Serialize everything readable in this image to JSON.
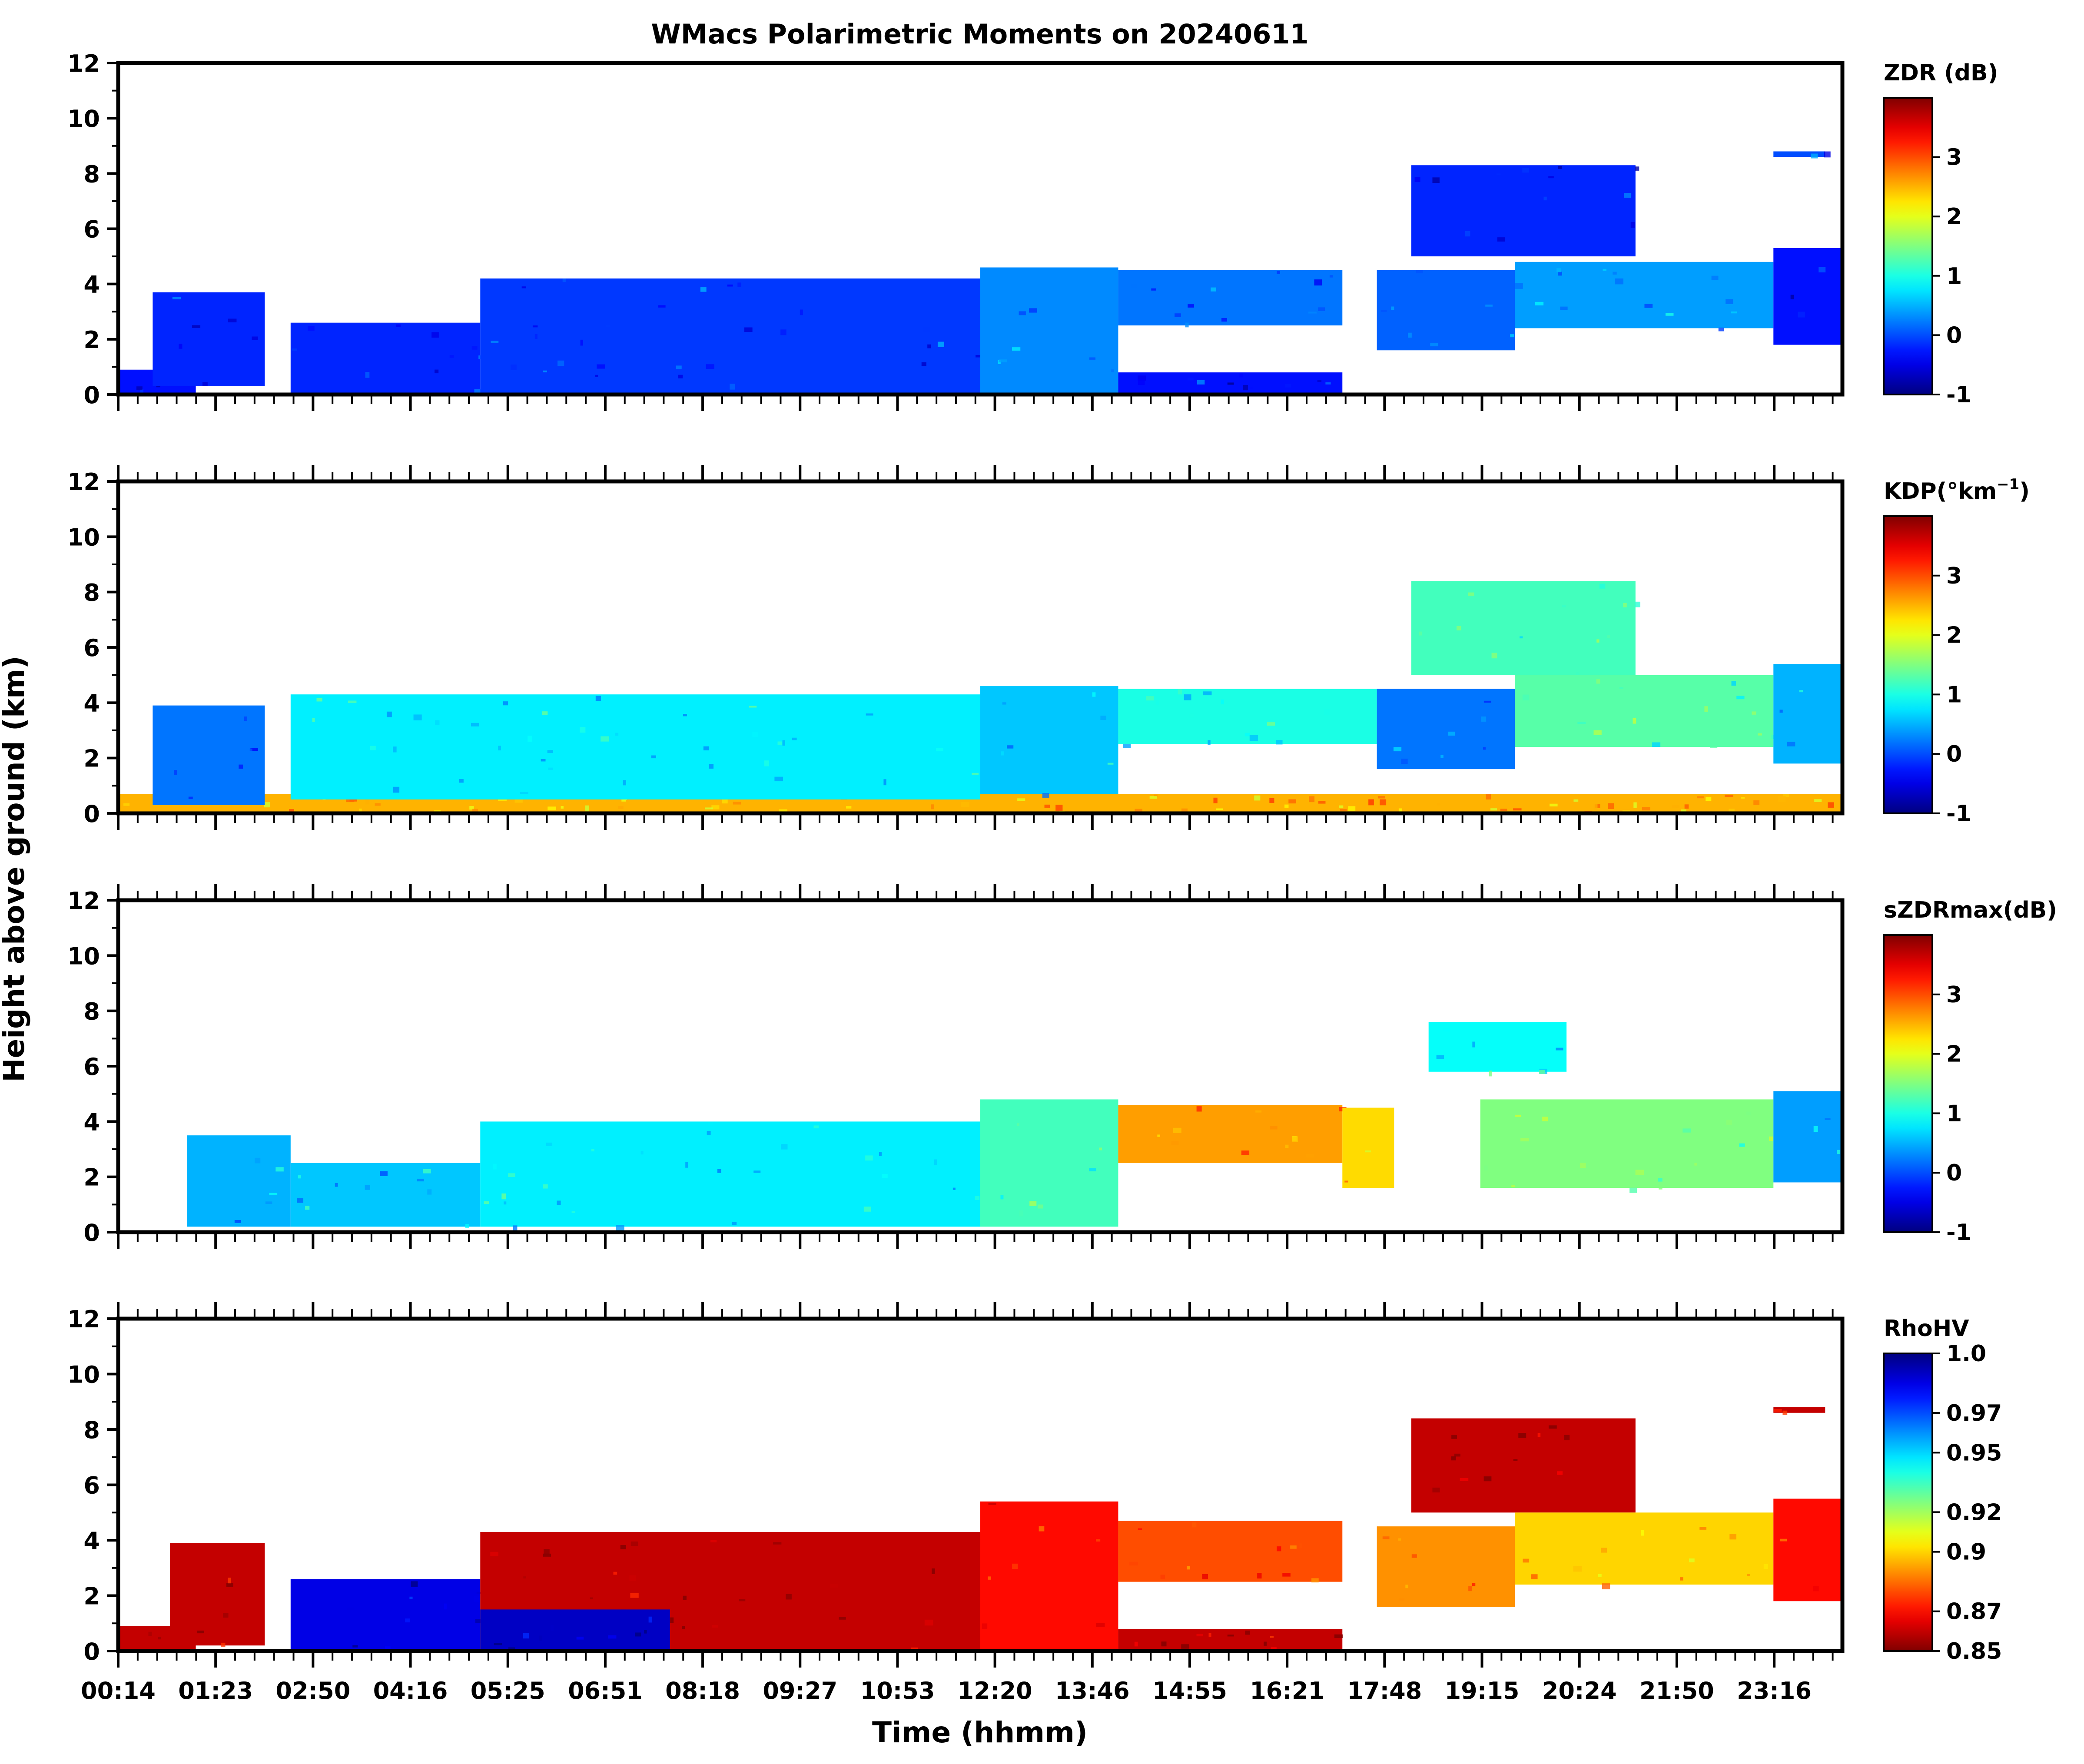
{
  "figure": {
    "title": "WMacs Polarimetric Moments on 20240611",
    "ylabel": "Height above ground (km)",
    "xlabel": "Time (hhmm)"
  },
  "chart_data": [
    {
      "type": "heatmap",
      "panel": "ZDR",
      "colorbar_label": "ZDR (dB)",
      "colorbar_ticks": [
        "-1",
        "0",
        "1",
        "2",
        "3"
      ],
      "colorbar_range": [
        -1,
        4
      ],
      "colormap": "jet",
      "y_ticks": [
        "0",
        "2",
        "4",
        "6",
        "8",
        "10",
        "12"
      ],
      "ylim": [
        0,
        12
      ],
      "x_ticks": [
        "00:14",
        "01:23",
        "02:50",
        "04:16",
        "05:25",
        "06:51",
        "08:18",
        "09:27",
        "10:53",
        "12:20",
        "13:46",
        "14:55",
        "16:21",
        "17:48",
        "19:15",
        "20:24",
        "21:50",
        "23:16"
      ],
      "cloud_layers": [
        {
          "t0": 0.0,
          "t1": 0.045,
          "h0": 0.0,
          "h1": 0.9,
          "value": -0.3
        },
        {
          "t0": 0.02,
          "t1": 0.085,
          "h0": 0.3,
          "h1": 3.7,
          "value": -0.2
        },
        {
          "t0": 0.1,
          "t1": 0.21,
          "h0": 0.0,
          "h1": 2.6,
          "value": -0.2
        },
        {
          "t0": 0.21,
          "t1": 0.5,
          "h0": 0.0,
          "h1": 4.2,
          "value": -0.1
        },
        {
          "t0": 0.5,
          "t1": 0.58,
          "h0": 0.0,
          "h1": 4.6,
          "value": 0.3
        },
        {
          "t0": 0.58,
          "t1": 0.71,
          "h0": 0.0,
          "h1": 0.8,
          "value": -0.3
        },
        {
          "t0": 0.58,
          "t1": 0.71,
          "h0": 2.5,
          "h1": 4.5,
          "value": 0.2
        },
        {
          "t0": 0.73,
          "t1": 0.81,
          "h0": 1.6,
          "h1": 4.5,
          "value": 0.1
        },
        {
          "t0": 0.75,
          "t1": 0.88,
          "h0": 5.0,
          "h1": 8.3,
          "value": -0.2
        },
        {
          "t0": 0.81,
          "t1": 0.96,
          "h0": 2.4,
          "h1": 4.8,
          "value": 0.4
        },
        {
          "t0": 0.96,
          "t1": 1.0,
          "h0": 1.8,
          "h1": 5.3,
          "value": -0.3
        },
        {
          "t0": 0.96,
          "t1": 0.99,
          "h0": 8.6,
          "h1": 8.8,
          "value": 0.0
        }
      ]
    },
    {
      "type": "heatmap",
      "panel": "KDP",
      "colorbar_label": "KDP(°km",
      "colorbar_label_sup": "−1",
      "colorbar_label_end": ")",
      "colorbar_ticks": [
        "-1",
        "0",
        "1",
        "2",
        "3"
      ],
      "colorbar_range": [
        -1,
        4
      ],
      "colormap": "jet",
      "y_ticks": [
        "0",
        "2",
        "4",
        "6",
        "8",
        "10",
        "12"
      ],
      "ylim": [
        0,
        12
      ],
      "x_ticks": [
        "00:14",
        "01:23",
        "02:50",
        "04:16",
        "05:25",
        "06:51",
        "08:18",
        "09:27",
        "10:53",
        "12:20",
        "13:46",
        "14:55",
        "16:21",
        "17:48",
        "19:15",
        "20:24",
        "21:50",
        "23:16"
      ],
      "cloud_layers": [
        {
          "t0": 0.0,
          "t1": 1.0,
          "h0": 0.0,
          "h1": 0.7,
          "value": 2.5
        },
        {
          "t0": 0.02,
          "t1": 0.085,
          "h0": 0.3,
          "h1": 3.9,
          "value": 0.2
        },
        {
          "t0": 0.1,
          "t1": 0.5,
          "h0": 0.5,
          "h1": 4.3,
          "value": 0.8
        },
        {
          "t0": 0.5,
          "t1": 0.58,
          "h0": 0.7,
          "h1": 4.6,
          "value": 0.6
        },
        {
          "t0": 0.58,
          "t1": 0.73,
          "h0": 2.5,
          "h1": 4.5,
          "value": 1.0
        },
        {
          "t0": 0.73,
          "t1": 0.81,
          "h0": 1.6,
          "h1": 4.5,
          "value": 0.2
        },
        {
          "t0": 0.75,
          "t1": 0.88,
          "h0": 5.0,
          "h1": 8.4,
          "value": 1.2
        },
        {
          "t0": 0.81,
          "t1": 0.96,
          "h0": 2.4,
          "h1": 5.0,
          "value": 1.3
        },
        {
          "t0": 0.96,
          "t1": 1.0,
          "h0": 1.8,
          "h1": 5.4,
          "value": 0.5
        }
      ]
    },
    {
      "type": "heatmap",
      "panel": "sZDRmax",
      "colorbar_label": "sZDRmax(dB)",
      "colorbar_ticks": [
        "-1",
        "0",
        "1",
        "2",
        "3"
      ],
      "colorbar_range": [
        -1,
        4
      ],
      "colormap": "jet",
      "y_ticks": [
        "0",
        "2",
        "4",
        "6",
        "8",
        "10",
        "12"
      ],
      "ylim": [
        0,
        12
      ],
      "x_ticks": [
        "00:14",
        "01:23",
        "02:50",
        "04:16",
        "05:25",
        "06:51",
        "08:18",
        "09:27",
        "10:53",
        "12:20",
        "13:46",
        "14:55",
        "16:21",
        "17:48",
        "19:15",
        "20:24",
        "21:50",
        "23:16"
      ],
      "cloud_layers": [
        {
          "t0": 0.04,
          "t1": 0.1,
          "h0": 0.2,
          "h1": 3.5,
          "value": 0.5
        },
        {
          "t0": 0.1,
          "t1": 0.21,
          "h0": 0.2,
          "h1": 2.5,
          "value": 0.6
        },
        {
          "t0": 0.21,
          "t1": 0.5,
          "h0": 0.2,
          "h1": 4.0,
          "value": 0.8
        },
        {
          "t0": 0.5,
          "t1": 0.58,
          "h0": 0.2,
          "h1": 4.8,
          "value": 1.2
        },
        {
          "t0": 0.58,
          "t1": 0.71,
          "h0": 2.5,
          "h1": 4.6,
          "value": 2.6
        },
        {
          "t0": 0.71,
          "t1": 0.74,
          "h0": 1.6,
          "h1": 4.5,
          "value": 2.3
        },
        {
          "t0": 0.76,
          "t1": 0.84,
          "h0": 5.8,
          "h1": 7.6,
          "value": 0.9
        },
        {
          "t0": 0.79,
          "t1": 0.96,
          "h0": 1.6,
          "h1": 4.8,
          "value": 1.5
        },
        {
          "t0": 0.96,
          "t1": 1.0,
          "h0": 1.8,
          "h1": 5.1,
          "value": 0.4
        }
      ]
    },
    {
      "type": "heatmap",
      "panel": "RhoHV",
      "colorbar_label": "RhoHV",
      "colorbar_ticks": [
        "0.85",
        "0.87",
        "0.9",
        "0.92",
        "0.95",
        "0.97",
        "1.0"
      ],
      "colorbar_range": [
        0.85,
        1.0
      ],
      "colormap": "jet_r",
      "y_ticks": [
        "0",
        "2",
        "4",
        "6",
        "8",
        "10",
        "12"
      ],
      "ylim": [
        0,
        12
      ],
      "x_ticks": [
        "00:14",
        "01:23",
        "02:50",
        "04:16",
        "05:25",
        "06:51",
        "08:18",
        "09:27",
        "10:53",
        "12:20",
        "13:46",
        "14:55",
        "16:21",
        "17:48",
        "19:15",
        "20:24",
        "21:50",
        "23:16"
      ],
      "cloud_layers": [
        {
          "t0": 0.0,
          "t1": 0.045,
          "h0": 0.0,
          "h1": 0.9,
          "value": 0.86
        },
        {
          "t0": 0.03,
          "t1": 0.085,
          "h0": 0.2,
          "h1": 3.9,
          "value": 0.86
        },
        {
          "t0": 0.1,
          "t1": 0.21,
          "h0": 0.0,
          "h1": 2.6,
          "value": 0.985
        },
        {
          "t0": 0.21,
          "t1": 0.5,
          "h0": 0.0,
          "h1": 4.3,
          "value": 0.86
        },
        {
          "t0": 0.21,
          "t1": 0.32,
          "h0": 0.0,
          "h1": 1.5,
          "value": 0.99
        },
        {
          "t0": 0.5,
          "t1": 0.58,
          "h0": 0.0,
          "h1": 5.4,
          "value": 0.87
        },
        {
          "t0": 0.58,
          "t1": 0.71,
          "h0": 0.0,
          "h1": 0.8,
          "value": 0.86
        },
        {
          "t0": 0.58,
          "t1": 0.71,
          "h0": 2.5,
          "h1": 4.7,
          "value": 0.88
        },
        {
          "t0": 0.73,
          "t1": 0.81,
          "h0": 1.6,
          "h1": 4.5,
          "value": 0.89
        },
        {
          "t0": 0.75,
          "t1": 0.88,
          "h0": 5.0,
          "h1": 8.4,
          "value": 0.86
        },
        {
          "t0": 0.81,
          "t1": 0.96,
          "h0": 2.4,
          "h1": 5.0,
          "value": 0.9
        },
        {
          "t0": 0.96,
          "t1": 1.0,
          "h0": 1.8,
          "h1": 5.5,
          "value": 0.87
        },
        {
          "t0": 0.96,
          "t1": 0.99,
          "h0": 8.6,
          "h1": 8.8,
          "value": 0.86
        }
      ]
    }
  ]
}
